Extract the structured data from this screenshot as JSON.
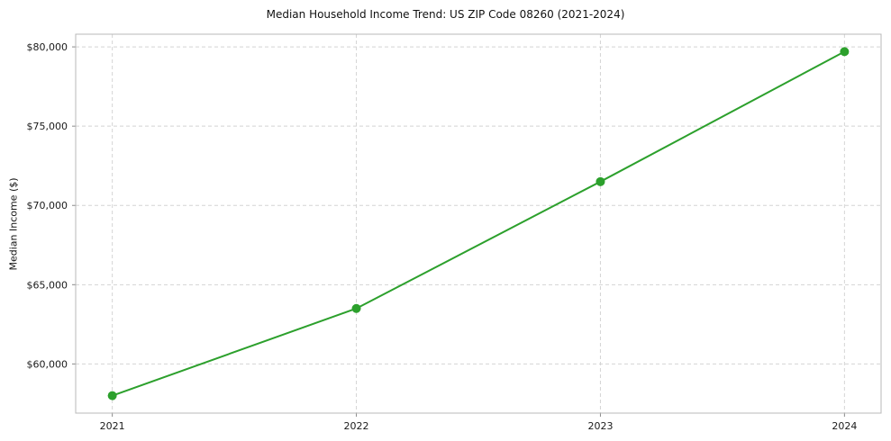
{
  "chart_data": {
    "type": "line",
    "title": "Median Household Income Trend: US ZIP Code 08260 (2021-2024)",
    "xlabel": "",
    "ylabel": "Median Income ($)",
    "categories": [
      2021,
      2022,
      2023,
      2024
    ],
    "values": [
      58000,
      63500,
      71500,
      79700
    ],
    "series": [
      {
        "name": "Median Household Income",
        "values": [
          58000,
          63500,
          71500,
          79700
        ]
      }
    ],
    "xlim": [
      2020.85,
      2024.15
    ],
    "ylim": [
      56900,
      80800
    ],
    "yticks": [
      60000,
      65000,
      70000,
      75000,
      80000
    ],
    "ytick_labels": [
      "$60,000",
      "$65,000",
      "$70,000",
      "$75,000",
      "$80,000"
    ],
    "xtick_labels": [
      "2021",
      "2022",
      "2023",
      "2024"
    ],
    "line_color": "#2ca02c",
    "marker": "circle",
    "marker_radius": 5,
    "line_width": 2,
    "grid": true,
    "grid_style": "dashed",
    "legend_position": "none"
  }
}
